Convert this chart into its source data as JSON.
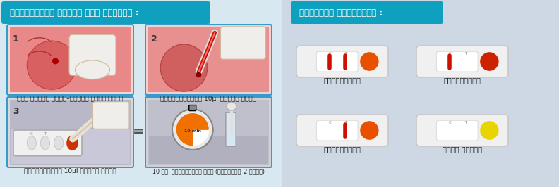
{
  "left_title": "चाचणीसाठी नमुना कसा घ्यावा :",
  "right_title": "परीक्षण व्याख्या :",
  "left_bg": "#d8e8f0",
  "right_bg": "#cdd8e4",
  "header_bg": "#0fa0c0",
  "header_text_color": "#ffffff",
  "step1_label": "कान टोचून रक्त–नमुना गोळा करणे",
  "step2_label": "ड्रॉपरमध्ये 10μl नमुना घ्या",
  "step3_label": "कॅसेटमध्ये 10μl नमुना सोडा",
  "step4_label": "10 मि. प्रतीक्षा करा",
  "step4_sub": "(बकरसाठी–2 थेंब)",
  "result_positive_label": "पॉझिटिव्ह",
  "result_negative_label": "नेगेटिव्ह",
  "result_invalid_label": "इनव्हॅलिड",
  "result_new_label": "न्यू कॅसेट",
  "line_red": "#cc1100",
  "dot_red": "#cc2200",
  "dot_orange": "#e85000",
  "dot_yellow": "#e8d400",
  "step_border": "#3399cc",
  "equals_color": "#555555"
}
